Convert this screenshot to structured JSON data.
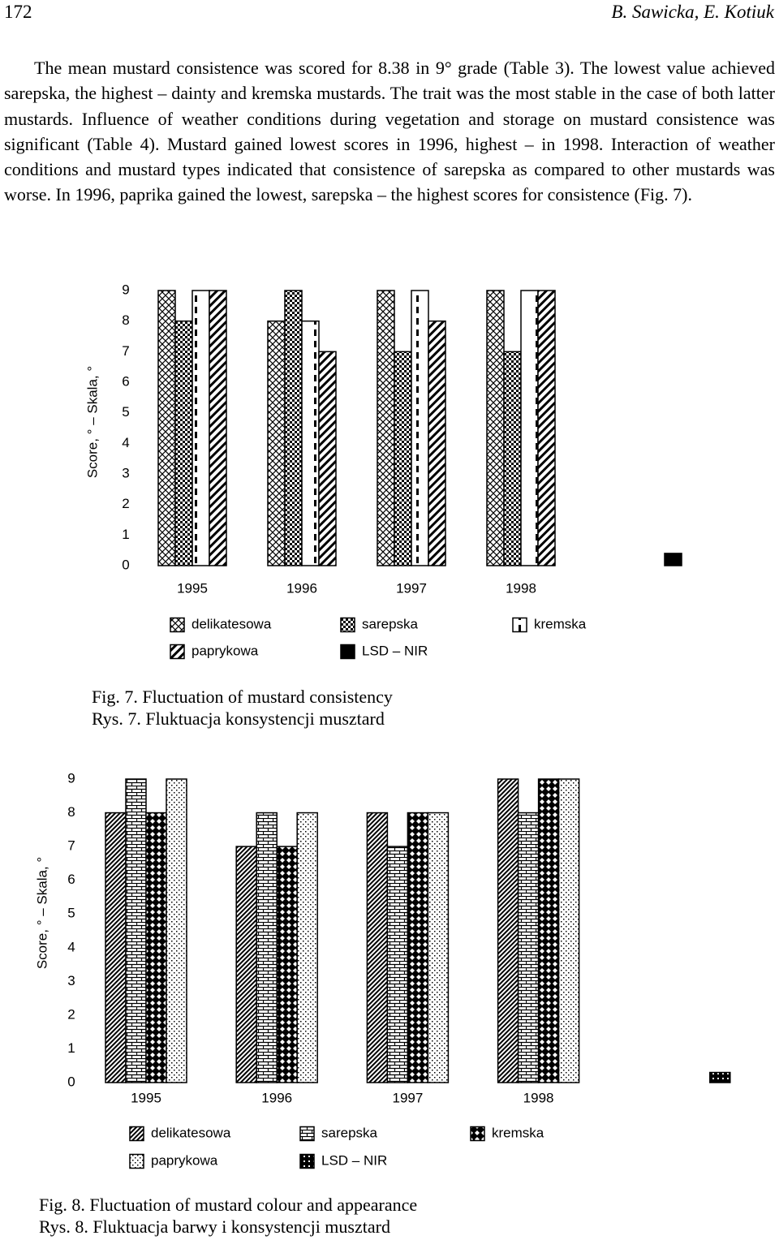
{
  "header": {
    "page_number": "172",
    "authors": "B. Sawicka, E. Kotiuk"
  },
  "paragraph": "The mean mustard consistence was scored for 8.38 in 9° grade (Table 3). The lowest value achieved sarepska, the highest – dainty and kremska mustards. The trait was the most stable in the case of both latter mustards. Influence of weather conditions during vegetation and storage on mustard consistence was significant (Table 4). Mustard gained lowest scores in 1996, highest – in 1998. Interaction of weather conditions and mustard types indicated that consistence of sarepska as compared to other mustards was worse. In 1996, paprika gained the lowest, sarepska – the highest scores for consistence (Fig. 7).",
  "chart_data": [
    {
      "type": "bar",
      "y_label": "Score, ° – Skala, °",
      "categories": [
        "1995",
        "1996",
        "1997",
        "1998",
        null
      ],
      "series": [
        {
          "name": "delikatesowa",
          "color": "#000000",
          "pattern": "cross",
          "values": [
            9,
            8,
            9,
            9,
            null
          ]
        },
        {
          "name": "sarepska",
          "color": "#000000",
          "pattern": "checker",
          "values": [
            8,
            9,
            7,
            7,
            null
          ]
        },
        {
          "name": "kremska",
          "color": "#000000",
          "pattern": "dash",
          "values": [
            9,
            8,
            9,
            9,
            null
          ]
        },
        {
          "name": "paprykowa",
          "color": "#000000",
          "pattern": "stripe",
          "values": [
            9,
            7,
            8,
            9,
            null
          ]
        },
        {
          "name": "LSD – NIR",
          "color": "#000000",
          "pattern": "solid",
          "values": [
            null,
            null,
            null,
            null,
            0.4
          ]
        }
      ],
      "ylim": [
        0,
        9
      ],
      "yticks": [
        0,
        1,
        2,
        3,
        4,
        5,
        6,
        7,
        8,
        9
      ],
      "caption": [
        "Fig. 7. Fluctuation of mustard consistency",
        "Rys. 7. Fluktuacja konsystencji musztard"
      ]
    },
    {
      "type": "bar",
      "y_label": "Score, ° – Skala, °",
      "categories": [
        "1995",
        "1996",
        "1997",
        "1998",
        null
      ],
      "series": [
        {
          "name": "delikatesowa",
          "color": "#000000",
          "pattern": "fine",
          "values": [
            8,
            7,
            8,
            9,
            null
          ]
        },
        {
          "name": "sarepska",
          "color": "#000000",
          "pattern": "brick",
          "values": [
            9,
            8,
            7,
            8,
            null
          ]
        },
        {
          "name": "kremska",
          "color": "#000000",
          "pattern": "plaid",
          "values": [
            8,
            7,
            8,
            9,
            null
          ]
        },
        {
          "name": "paprykowa",
          "color": "#000000",
          "pattern": "dots",
          "values": [
            9,
            8,
            8,
            9,
            null
          ]
        },
        {
          "name": "LSD – NIR",
          "color": "#000000",
          "pattern": "grid",
          "values": [
            null,
            null,
            null,
            null,
            0.3
          ]
        }
      ],
      "ylim": [
        0,
        9
      ],
      "yticks": [
        0,
        1,
        2,
        3,
        4,
        5,
        6,
        7,
        8,
        9
      ],
      "caption": [
        "Fig. 8. Fluctuation of mustard colour and appearance",
        "Rys. 8. Fluktuacja barwy i konsystencji musztard"
      ]
    }
  ]
}
